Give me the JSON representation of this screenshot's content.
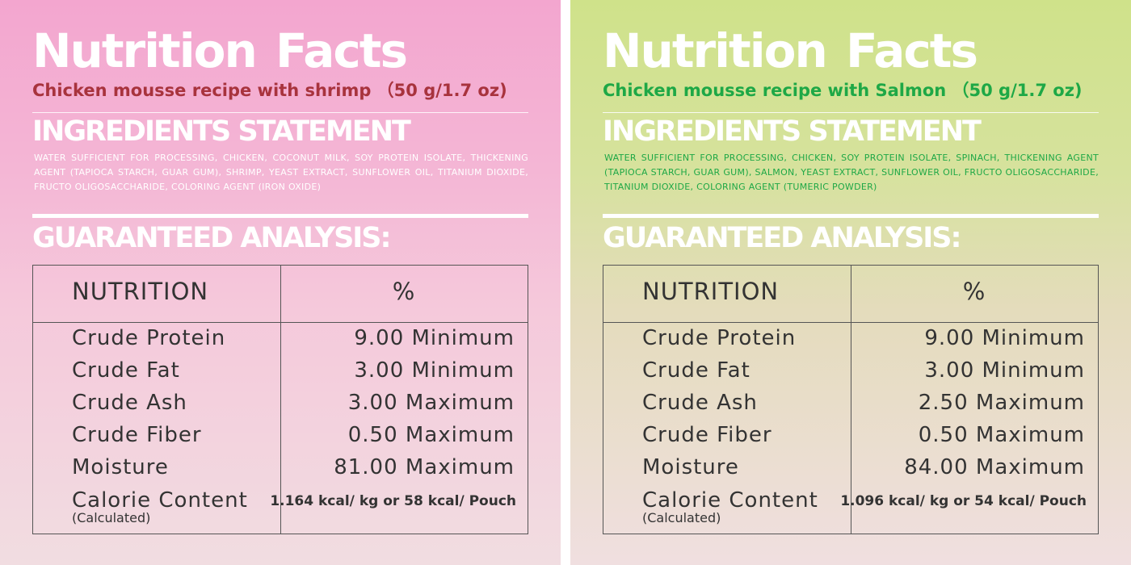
{
  "panels": [
    {
      "title": "Nutrition Facts",
      "subtitle": "Chicken mousse recipe with shrimp （50 g/1.7 oz)",
      "ingredients_heading": "INGREDIENTS STATEMENT",
      "ingredients": "WATER SUFFICIENT FOR PROCESSING, CHICKEN, COCONUT MILK, SOY PROTEIN ISOLATE, THICKENING AGENT (TAPIOCA STARCH, GUAR GUM), SHRIMP, YEAST EXTRACT, SUNFLOWER OIL, TITANIUM DIOXIDE, FRUCTO OLIGOSACCHARIDE, COLORING AGENT (IRON OXIDE)",
      "analysis_heading": "GUARANTEED ANALYSIS:",
      "table": {
        "header_nutrition": "NUTRITION",
        "header_percent": "%",
        "rows": [
          {
            "name": "Crude Protein",
            "value": "9.00 Minimum"
          },
          {
            "name": "Crude Fat",
            "value": "3.00 Minimum"
          },
          {
            "name": "Crude Ash",
            "value": "3.00 Maximum"
          },
          {
            "name": "Crude Fiber",
            "value": "0.50 Maximum"
          },
          {
            "name": "Moisture",
            "value": "81.00 Maximum"
          }
        ],
        "calorie_label": "Calorie Content",
        "calorie_note": "(Calculated)",
        "calorie_value": "1.164 kcal/ kg or 58 kcal/ Pouch"
      }
    },
    {
      "title": "Nutrition Facts",
      "subtitle": "Chicken mousse recipe with Salmon （50 g/1.7 oz)",
      "ingredients_heading": "INGREDIENTS STATEMENT",
      "ingredients": "WATER SUFFICIENT FOR PROCESSING, CHICKEN, SOY PROTEIN ISOLATE, SPINACH, THICKENING AGENT (TAPIOCA STARCH, GUAR GUM), SALMON, YEAST EXTRACT, SUNFLOWER OIL, FRUCTO OLIGOSACCHARIDE, TITANIUM DIOXIDE, COLORING AGENT (TUMERIC POWDER)",
      "analysis_heading": "GUARANTEED ANALYSIS:",
      "table": {
        "header_nutrition": "NUTRITION",
        "header_percent": "%",
        "rows": [
          {
            "name": "Crude Protein",
            "value": "9.00 Minimum"
          },
          {
            "name": "Crude Fat",
            "value": "3.00 Minimum"
          },
          {
            "name": "Crude Ash",
            "value": "2.50 Maximum"
          },
          {
            "name": "Crude Fiber",
            "value": "0.50 Maximum"
          },
          {
            "name": "Moisture",
            "value": "84.00 Maximum"
          }
        ],
        "calorie_label": "Calorie Content",
        "calorie_note": "(Calculated)",
        "calorie_value": "1.096 kcal/ kg or 54 kcal/ Pouch"
      }
    }
  ],
  "colors": {
    "left_accent": "#a8333d",
    "right_accent": "#1ea846",
    "left_background": "#f3a6cf",
    "right_background": "#cfe28a"
  }
}
